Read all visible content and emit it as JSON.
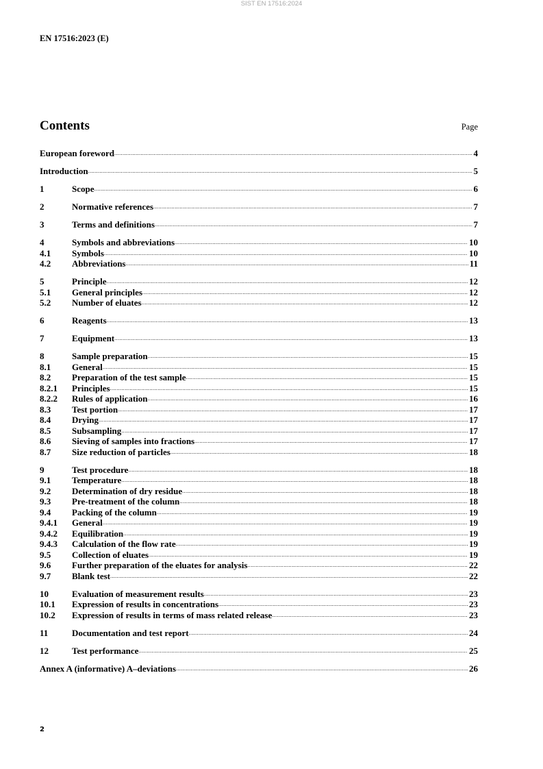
{
  "watermark": "SIST EN 17516:2024",
  "header": "EN 17516:2023 (E)",
  "title": "Contents",
  "page_label": "Page",
  "toc_groups": [
    [
      {
        "num": "",
        "label": "European foreword",
        "page": "4",
        "wide": true
      }
    ],
    [
      {
        "num": "",
        "label": "Introduction",
        "page": "5",
        "wide": true
      }
    ],
    [
      {
        "num": "1",
        "label": "Scope",
        "page": "6"
      }
    ],
    [
      {
        "num": "2",
        "label": "Normative references",
        "page": "7"
      }
    ],
    [
      {
        "num": "3",
        "label": "Terms and definitions",
        "page": "7"
      }
    ],
    [
      {
        "num": "4",
        "label": "Symbols and abbreviations",
        "page": "10"
      },
      {
        "num": "4.1",
        "label": "Symbols",
        "page": "10"
      },
      {
        "num": "4.2",
        "label": "Abbreviations",
        "page": "11"
      }
    ],
    [
      {
        "num": "5",
        "label": "Principle",
        "page": "12"
      },
      {
        "num": "5.1",
        "label": "General principles",
        "page": "12"
      },
      {
        "num": "5.2",
        "label": "Number of eluates",
        "page": "12"
      }
    ],
    [
      {
        "num": "6",
        "label": "Reagents",
        "page": "13"
      }
    ],
    [
      {
        "num": "7",
        "label": "Equipment",
        "page": "13"
      }
    ],
    [
      {
        "num": "8",
        "label": "Sample preparation",
        "page": "15"
      },
      {
        "num": "8.1",
        "label": "General",
        "page": "15"
      },
      {
        "num": "8.2",
        "label": "Preparation of the test sample",
        "page": "15"
      },
      {
        "num": "8.2.1",
        "label": "Principles",
        "page": "15"
      },
      {
        "num": "8.2.2",
        "label": "Rules of application",
        "page": "16"
      },
      {
        "num": "8.3",
        "label": "Test portion",
        "page": "17"
      },
      {
        "num": "8.4",
        "label": "Drying",
        "page": "17"
      },
      {
        "num": "8.5",
        "label": "Subsampling",
        "page": "17"
      },
      {
        "num": "8.6",
        "label": "Sieving of samples into fractions",
        "page": "17"
      },
      {
        "num": "8.7",
        "label": "Size reduction of particles",
        "page": "18"
      }
    ],
    [
      {
        "num": "9",
        "label": "Test procedure",
        "page": "18"
      },
      {
        "num": "9.1",
        "label": "Temperature",
        "page": "18"
      },
      {
        "num": "9.2",
        "label": "Determination of dry residue",
        "page": "18"
      },
      {
        "num": "9.3",
        "label": "Pre-treatment of the column",
        "page": "18"
      },
      {
        "num": "9.4",
        "label": "Packing of the column",
        "page": "19"
      },
      {
        "num": "9.4.1",
        "label": "General",
        "page": "19"
      },
      {
        "num": "9.4.2",
        "label": "Equilibration",
        "page": "19"
      },
      {
        "num": "9.4.3",
        "label": "Calculation of the flow rate",
        "page": "19"
      },
      {
        "num": "9.5",
        "label": "Collection of eluates",
        "page": "19"
      },
      {
        "num": "9.6",
        "label": "Further preparation of the eluates for analysis",
        "page": "22"
      },
      {
        "num": "9.7",
        "label": "Blank test",
        "page": "22"
      }
    ],
    [
      {
        "num": "10",
        "label": "Evaluation of measurement results",
        "page": "23"
      },
      {
        "num": "10.1",
        "label": "Expression of results in concentrations",
        "page": "23"
      },
      {
        "num": "10.2",
        "label": "Expression of results in terms of mass related release",
        "page": "23"
      }
    ],
    [
      {
        "num": "11",
        "label": "Documentation and test report",
        "page": "24"
      }
    ],
    [
      {
        "num": "12",
        "label": "Test performance",
        "page": "25"
      }
    ],
    [
      {
        "num": "",
        "label": "Annex A (informative)  A–deviations",
        "page": "26",
        "wide": true
      }
    ]
  ],
  "page_number": "2"
}
